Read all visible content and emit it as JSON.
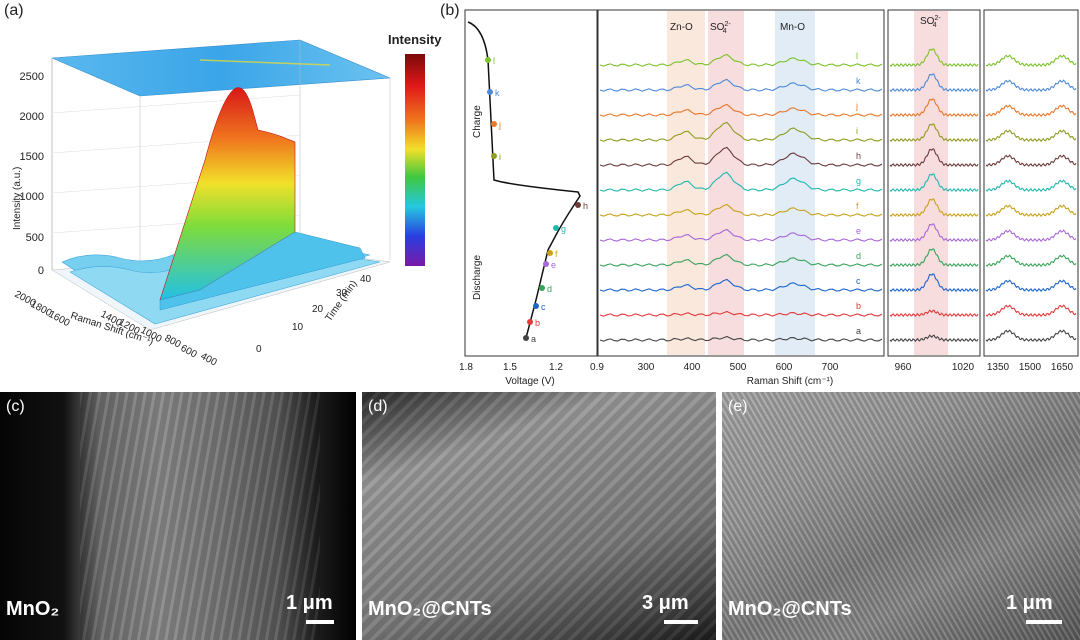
{
  "panel_a": {
    "label": "(a)",
    "colorbar_title": "Intensity",
    "z_ticks": [
      "0",
      "500",
      "1000",
      "1500",
      "2000",
      "2500"
    ],
    "z_label": "Intensity (a.u.)",
    "x_ticks": [
      "2000",
      "1800",
      "1600",
      "1400",
      "1200",
      "1000",
      "800",
      "600",
      "400"
    ],
    "x_label": "Raman Shift (cm⁻¹)",
    "t_ticks": [
      "0",
      "10",
      "20",
      "30",
      "40"
    ],
    "t_label": "Time (min)"
  },
  "panel_b": {
    "label": "(b)",
    "voltage_axis": {
      "ticks": [
        "1.8",
        "1.5",
        "1.2",
        "0.9"
      ],
      "label": "Voltage (V)"
    },
    "charge_label": "Charge",
    "discharge_label": "Discharge",
    "points": [
      "a",
      "b",
      "c",
      "d",
      "e",
      "f",
      "g",
      "h",
      "i",
      "j",
      "k",
      "l"
    ],
    "spectrum_axis": {
      "ticks": [
        "300",
        "400",
        "500",
        "600",
        "700"
      ],
      "label": "Raman Shift (cm⁻¹)"
    },
    "bands": {
      "zno": "Zn-O",
      "so4": "SO",
      "mno": "Mn-O"
    },
    "so4_super": "2-",
    "so4_sub": "4",
    "sub_axis_1": {
      "ticks": [
        "960",
        "1020"
      ]
    },
    "sub_axis_2": {
      "ticks": [
        "1350",
        "1500",
        "1650"
      ]
    },
    "trace_colors": [
      "#444444",
      "#e23a3a",
      "#1f66c9",
      "#3aa35a",
      "#a868d6",
      "#c8a21a",
      "#22b7b0",
      "#6b3b3b",
      "#8f9c20",
      "#e8782a",
      "#4f8ad8",
      "#7cc22b"
    ]
  },
  "panel_c": {
    "label": "(c)",
    "caption": "MnO₂",
    "scale": "1 μm"
  },
  "panel_d": {
    "label": "(d)",
    "caption": "MnO₂@CNTs",
    "scale": "3 μm"
  },
  "panel_e": {
    "label": "(e)",
    "caption": "MnO₂@CNTs",
    "scale": "1 μm"
  }
}
